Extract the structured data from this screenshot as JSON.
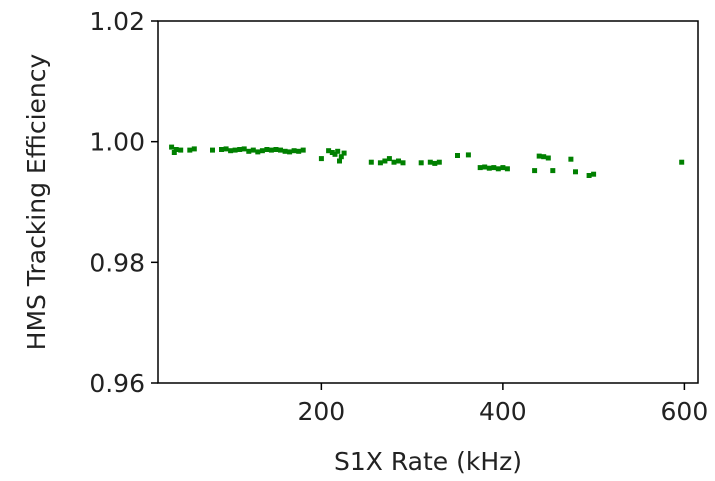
{
  "chart_data": {
    "type": "scatter",
    "title": "",
    "xlabel": "S1X Rate (kHz)",
    "ylabel": "HMS Tracking Efficiency",
    "xlim": [
      20,
      615
    ],
    "ylim": [
      0.96,
      1.02
    ],
    "x_ticks": [
      200,
      400,
      600
    ],
    "x_tick_labels": [
      "200",
      "400",
      "600"
    ],
    "y_ticks": [
      0.96,
      0.98,
      1.0,
      1.02
    ],
    "y_tick_labels": [
      "0.96",
      "0.98",
      "1.00",
      "1.02"
    ],
    "grid": false,
    "legend": "none",
    "marker_color": "#008000",
    "series": [
      {
        "x": [
          35,
          38,
          40,
          45,
          55,
          60,
          80,
          90,
          95,
          100,
          105,
          110,
          115,
          120,
          125,
          130,
          135,
          140,
          145,
          150,
          155,
          160,
          165,
          170,
          175,
          180,
          200,
          208,
          212,
          215,
          218,
          220,
          222,
          225,
          255,
          265,
          270,
          275,
          280,
          285,
          290,
          310,
          320,
          325,
          330,
          350,
          362,
          375,
          380,
          385,
          390,
          395,
          400,
          405,
          435,
          440,
          445,
          450,
          455,
          475,
          480,
          495,
          500,
          597
        ],
        "y": [
          0.9991,
          0.9982,
          0.9987,
          0.9986,
          0.9986,
          0.9988,
          0.9986,
          0.9987,
          0.9988,
          0.9985,
          0.9986,
          0.9987,
          0.9988,
          0.9984,
          0.9986,
          0.9983,
          0.9985,
          0.9987,
          0.9986,
          0.9987,
          0.9986,
          0.9984,
          0.9983,
          0.9985,
          0.9984,
          0.9986,
          0.9972,
          0.9985,
          0.9982,
          0.9979,
          0.9984,
          0.9968,
          0.9975,
          0.9981,
          0.9966,
          0.9965,
          0.9968,
          0.9972,
          0.9966,
          0.9968,
          0.9965,
          0.9965,
          0.9966,
          0.9964,
          0.9966,
          0.9977,
          0.9978,
          0.9957,
          0.9958,
          0.9956,
          0.9957,
          0.9955,
          0.9957,
          0.9955,
          0.9952,
          0.9976,
          0.9975,
          0.9973,
          0.9952,
          0.9971,
          0.995,
          0.9944,
          0.9946,
          0.9966
        ]
      }
    ]
  }
}
